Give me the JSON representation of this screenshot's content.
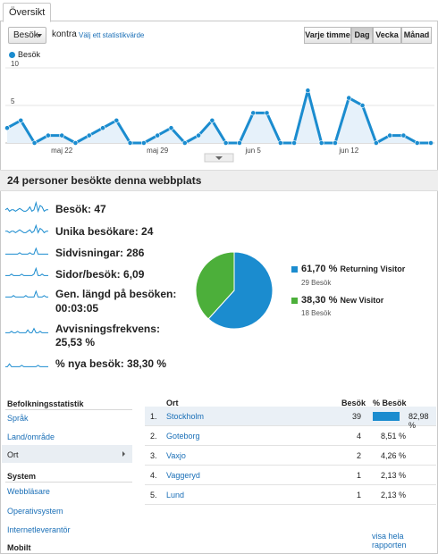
{
  "tabs": [
    {
      "label": "Översikt"
    }
  ],
  "controls": {
    "metric_select": "Besök",
    "versus_label": "kontra",
    "pick_metric_link": "Välj ett statistikvärde",
    "granularity": [
      {
        "label": "Varje timme",
        "active": false
      },
      {
        "label": "Dag",
        "active": true
      },
      {
        "label": "Vecka",
        "active": false
      },
      {
        "label": "Månad",
        "active": false
      }
    ]
  },
  "chart_data": {
    "type": "area",
    "series": [
      {
        "name": "Besök",
        "values": [
          2,
          3,
          0,
          1,
          1,
          0,
          1,
          2,
          3,
          0,
          0,
          1,
          2,
          0,
          1,
          3,
          0,
          0,
          4,
          4,
          0,
          0,
          7,
          0,
          0,
          6,
          5,
          0,
          1,
          1,
          0,
          0
        ]
      }
    ],
    "x_tick_labels": [
      {
        "index": 4,
        "label": "maj 22"
      },
      {
        "index": 11,
        "label": "maj 29"
      },
      {
        "index": 18,
        "label": "jun 5"
      },
      {
        "index": 25,
        "label": "jun 12"
      }
    ],
    "y_tick_labels": [
      "10",
      "5"
    ],
    "ylim": [
      0,
      10
    ],
    "color": "#1b8ccf"
  },
  "summary": {
    "title": "24 personer besökte denna webbplats",
    "metrics": [
      {
        "label": "Besök: 47"
      },
      {
        "label": "Unika besökare: 24"
      },
      {
        "label": "Sidvisningar: 286"
      },
      {
        "label": "Sidor/besök: 6,09"
      },
      {
        "label": "Gen. längd på besöken:",
        "value": "00:03:05"
      },
      {
        "label": "Avvisningsfrekvens:",
        "value": "25,53 %"
      },
      {
        "label": "% nya besök: 38,30 %"
      }
    ]
  },
  "pie": {
    "slices": [
      {
        "name": "Returning Visitor",
        "pct_label": "61,70 %",
        "pct": 61.7,
        "sub": "29 Besök",
        "color": "#1b8ccf"
      },
      {
        "name": "New Visitor",
        "pct_label": "38,30 %",
        "pct": 38.3,
        "sub": "18 Besök",
        "color": "#4caf3a"
      }
    ]
  },
  "sidebar": {
    "section1": "Befolkningsstatistik",
    "items1": [
      "Språk",
      "Land/område"
    ],
    "selected": "Ort",
    "section2": "System",
    "items2": [
      "Webbläsare",
      "Operativsystem",
      "Internetleverantör"
    ],
    "section3": "Mobilt"
  },
  "table": {
    "headers": {
      "name": "Ort",
      "visits": "Besök",
      "pct": "% Besök"
    },
    "rows": [
      {
        "rank": "1.",
        "city": "Stockholm",
        "visits": "39",
        "pct_label": "82,98 %",
        "pct": 82.98
      },
      {
        "rank": "2.",
        "city": "Goteborg",
        "visits": "4",
        "pct_label": "8,51 %",
        "pct": 8.51
      },
      {
        "rank": "3.",
        "city": "Vaxjo",
        "visits": "2",
        "pct_label": "4,26 %",
        "pct": 4.26
      },
      {
        "rank": "4.",
        "city": "Vaggeryd",
        "visits": "1",
        "pct_label": "2,13 %",
        "pct": 2.13
      },
      {
        "rank": "5.",
        "city": "Lund",
        "visits": "1",
        "pct_label": "2,13 %",
        "pct": 2.13
      }
    ],
    "more_link": "visa hela rapporten"
  }
}
